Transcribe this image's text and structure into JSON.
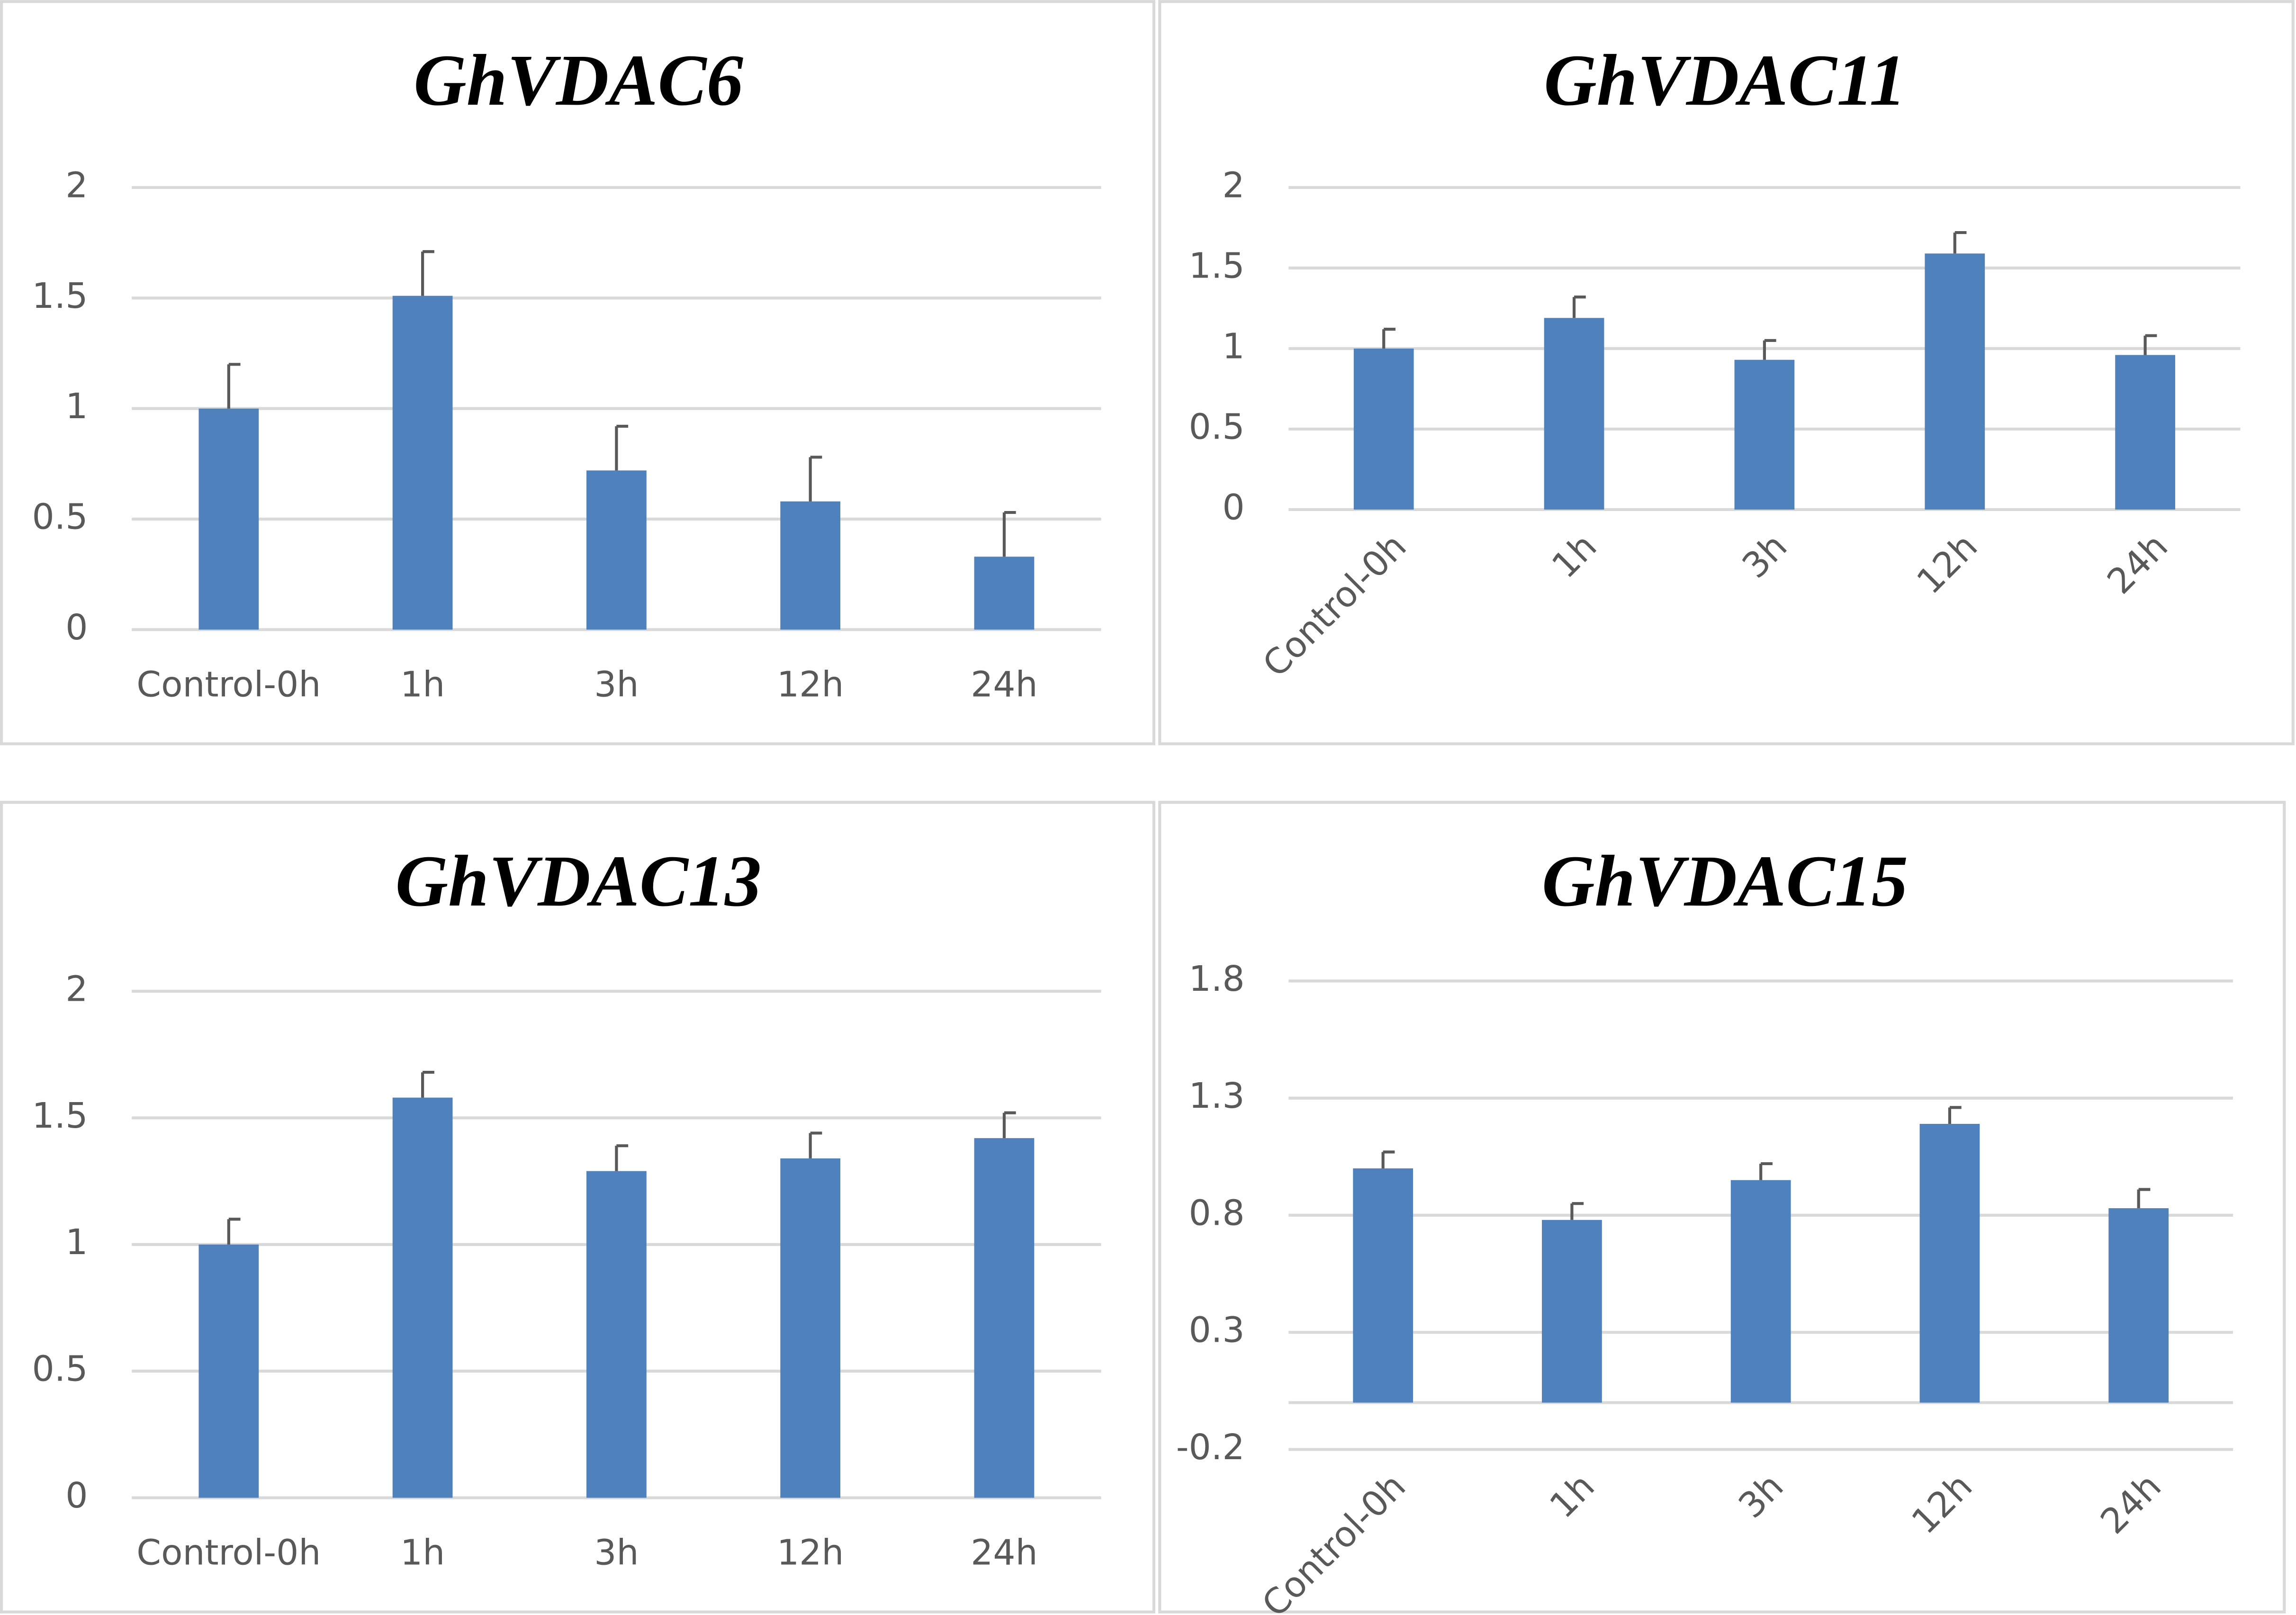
{
  "chart_data": [
    {
      "type": "bar",
      "title": "GhVDAC6",
      "categories": [
        "Control-0h",
        "1h",
        "3h",
        "12h",
        "24h"
      ],
      "values": [
        1.0,
        1.51,
        0.72,
        0.58,
        0.33
      ],
      "errors": [
        0.2,
        0.2,
        0.2,
        0.2,
        0.2
      ],
      "color": "#4f81bd",
      "ylim": [
        0,
        2
      ],
      "yticks": [
        0,
        0.5,
        1,
        1.5,
        2
      ],
      "grid": true,
      "xtick_rotation": 0
    },
    {
      "type": "bar",
      "title": "GhVDAC11",
      "categories": [
        "Control-0h",
        "1h",
        "3h",
        "12h",
        "24h"
      ],
      "values": [
        1.0,
        1.19,
        0.93,
        1.59,
        0.96
      ],
      "errors": [
        0.12,
        0.13,
        0.12,
        0.13,
        0.12
      ],
      "color": "#4f81bd",
      "ylim": [
        0,
        2
      ],
      "yticks": [
        0,
        0.5,
        1,
        1.5,
        2
      ],
      "grid": true,
      "xtick_rotation": -45
    },
    {
      "type": "bar",
      "title": "GhVDAC13",
      "categories": [
        "Control-0h",
        "1h",
        "3h",
        "12h",
        "24h"
      ],
      "values": [
        1.0,
        1.58,
        1.29,
        1.34,
        1.42
      ],
      "errors": [
        0.1,
        0.1,
        0.1,
        0.1,
        0.1
      ],
      "color": "#4f81bd",
      "ylim": [
        0,
        2
      ],
      "yticks": [
        0,
        0.5,
        1,
        1.5,
        2
      ],
      "grid": true,
      "xtick_rotation": 0
    },
    {
      "type": "bar",
      "title": "GhVDAC15",
      "categories": [
        "Control-0h",
        "1h",
        "3h",
        "12h",
        "24h"
      ],
      "values": [
        1.0,
        0.78,
        0.95,
        1.19,
        0.83
      ],
      "errors": [
        0.07,
        0.07,
        0.07,
        0.07,
        0.08
      ],
      "color": "#4f81bd",
      "ylim": [
        -0.2,
        1.8
      ],
      "yticks": [
        -0.2,
        0.3,
        0.8,
        1.3,
        1.8
      ],
      "grid": true,
      "xtick_rotation": -45
    }
  ]
}
